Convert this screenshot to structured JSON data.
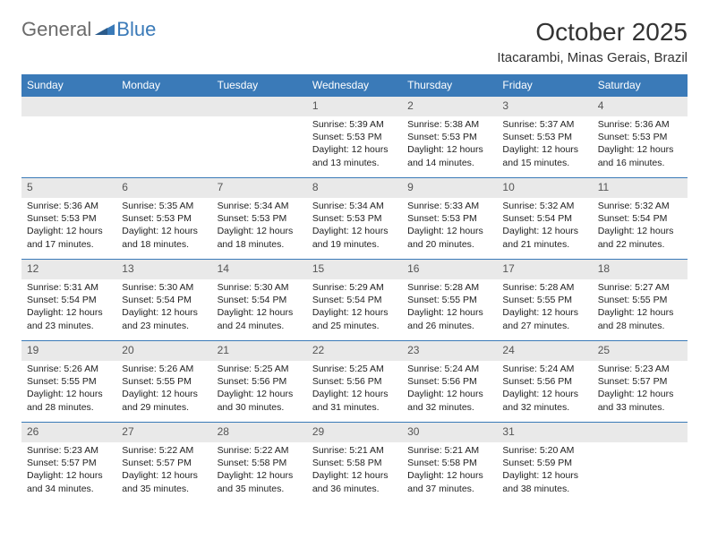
{
  "brand": {
    "part1": "General",
    "part2": "Blue"
  },
  "title": "October 2025",
  "location": "Itacarambi, Minas Gerais, Brazil",
  "colors": {
    "header_bg": "#3a7ab8",
    "header_text": "#ffffff",
    "daynum_bg": "#e9e9e9",
    "border": "#3a7ab8",
    "body_text": "#222222"
  },
  "weekdays": [
    "Sunday",
    "Monday",
    "Tuesday",
    "Wednesday",
    "Thursday",
    "Friday",
    "Saturday"
  ],
  "weeks": [
    [
      null,
      null,
      null,
      {
        "n": "1",
        "sr": "5:39 AM",
        "ss": "5:53 PM",
        "dl": "12 hours and 13 minutes."
      },
      {
        "n": "2",
        "sr": "5:38 AM",
        "ss": "5:53 PM",
        "dl": "12 hours and 14 minutes."
      },
      {
        "n": "3",
        "sr": "5:37 AM",
        "ss": "5:53 PM",
        "dl": "12 hours and 15 minutes."
      },
      {
        "n": "4",
        "sr": "5:36 AM",
        "ss": "5:53 PM",
        "dl": "12 hours and 16 minutes."
      }
    ],
    [
      {
        "n": "5",
        "sr": "5:36 AM",
        "ss": "5:53 PM",
        "dl": "12 hours and 17 minutes."
      },
      {
        "n": "6",
        "sr": "5:35 AM",
        "ss": "5:53 PM",
        "dl": "12 hours and 18 minutes."
      },
      {
        "n": "7",
        "sr": "5:34 AM",
        "ss": "5:53 PM",
        "dl": "12 hours and 18 minutes."
      },
      {
        "n": "8",
        "sr": "5:34 AM",
        "ss": "5:53 PM",
        "dl": "12 hours and 19 minutes."
      },
      {
        "n": "9",
        "sr": "5:33 AM",
        "ss": "5:53 PM",
        "dl": "12 hours and 20 minutes."
      },
      {
        "n": "10",
        "sr": "5:32 AM",
        "ss": "5:54 PM",
        "dl": "12 hours and 21 minutes."
      },
      {
        "n": "11",
        "sr": "5:32 AM",
        "ss": "5:54 PM",
        "dl": "12 hours and 22 minutes."
      }
    ],
    [
      {
        "n": "12",
        "sr": "5:31 AM",
        "ss": "5:54 PM",
        "dl": "12 hours and 23 minutes."
      },
      {
        "n": "13",
        "sr": "5:30 AM",
        "ss": "5:54 PM",
        "dl": "12 hours and 23 minutes."
      },
      {
        "n": "14",
        "sr": "5:30 AM",
        "ss": "5:54 PM",
        "dl": "12 hours and 24 minutes."
      },
      {
        "n": "15",
        "sr": "5:29 AM",
        "ss": "5:54 PM",
        "dl": "12 hours and 25 minutes."
      },
      {
        "n": "16",
        "sr": "5:28 AM",
        "ss": "5:55 PM",
        "dl": "12 hours and 26 minutes."
      },
      {
        "n": "17",
        "sr": "5:28 AM",
        "ss": "5:55 PM",
        "dl": "12 hours and 27 minutes."
      },
      {
        "n": "18",
        "sr": "5:27 AM",
        "ss": "5:55 PM",
        "dl": "12 hours and 28 minutes."
      }
    ],
    [
      {
        "n": "19",
        "sr": "5:26 AM",
        "ss": "5:55 PM",
        "dl": "12 hours and 28 minutes."
      },
      {
        "n": "20",
        "sr": "5:26 AM",
        "ss": "5:55 PM",
        "dl": "12 hours and 29 minutes."
      },
      {
        "n": "21",
        "sr": "5:25 AM",
        "ss": "5:56 PM",
        "dl": "12 hours and 30 minutes."
      },
      {
        "n": "22",
        "sr": "5:25 AM",
        "ss": "5:56 PM",
        "dl": "12 hours and 31 minutes."
      },
      {
        "n": "23",
        "sr": "5:24 AM",
        "ss": "5:56 PM",
        "dl": "12 hours and 32 minutes."
      },
      {
        "n": "24",
        "sr": "5:24 AM",
        "ss": "5:56 PM",
        "dl": "12 hours and 32 minutes."
      },
      {
        "n": "25",
        "sr": "5:23 AM",
        "ss": "5:57 PM",
        "dl": "12 hours and 33 minutes."
      }
    ],
    [
      {
        "n": "26",
        "sr": "5:23 AM",
        "ss": "5:57 PM",
        "dl": "12 hours and 34 minutes."
      },
      {
        "n": "27",
        "sr": "5:22 AM",
        "ss": "5:57 PM",
        "dl": "12 hours and 35 minutes."
      },
      {
        "n": "28",
        "sr": "5:22 AM",
        "ss": "5:58 PM",
        "dl": "12 hours and 35 minutes."
      },
      {
        "n": "29",
        "sr": "5:21 AM",
        "ss": "5:58 PM",
        "dl": "12 hours and 36 minutes."
      },
      {
        "n": "30",
        "sr": "5:21 AM",
        "ss": "5:58 PM",
        "dl": "12 hours and 37 minutes."
      },
      {
        "n": "31",
        "sr": "5:20 AM",
        "ss": "5:59 PM",
        "dl": "12 hours and 38 minutes."
      },
      null
    ]
  ],
  "labels": {
    "sunrise": "Sunrise:",
    "sunset": "Sunset:",
    "daylight": "Daylight:"
  }
}
